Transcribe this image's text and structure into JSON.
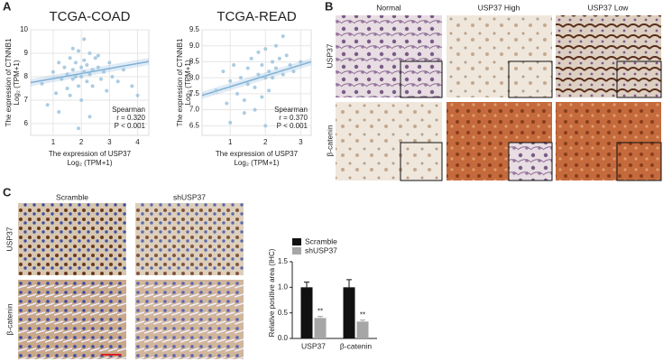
{
  "figure": {
    "panel_labels": [
      "A",
      "B",
      "C"
    ],
    "panel_b": {
      "columns": [
        "Normal",
        "USP37 High",
        "USP37 Low"
      ],
      "rows": [
        "USP37",
        "β-catenin"
      ]
    },
    "panel_c": {
      "columns": [
        "Scramble",
        "shUSP37"
      ],
      "rows": [
        "USP37",
        "β-catenin"
      ]
    }
  },
  "chart_data": [
    {
      "type": "scatter",
      "title": "TCGA-COAD",
      "color": "#9cc3de",
      "ylabel": [
        "The expression of CTNNB1",
        "Log₂ (TPM+1)"
      ],
      "xlabel": [
        "The expression of USP37",
        "Log₂ (TPM+1)"
      ],
      "x": [
        0.6,
        0.8,
        1.0,
        1.1,
        1.2,
        1.3,
        1.4,
        1.5,
        1.5,
        1.6,
        1.6,
        1.7,
        1.7,
        1.8,
        1.8,
        1.9,
        1.9,
        2.0,
        2.0,
        2.0,
        2.1,
        2.1,
        2.2,
        2.2,
        2.3,
        2.3,
        2.4,
        2.4,
        2.5,
        2.6,
        2.7,
        2.8,
        2.9,
        3.0,
        3.1,
        3.3,
        3.5,
        3.8,
        4.0,
        1.2,
        1.9,
        2.3,
        2.1,
        1.7,
        2.6
      ],
      "values": [
        7.7,
        6.8,
        8.2,
        7.3,
        8.6,
        7.9,
        8.4,
        8.1,
        7.5,
        8.8,
        7.2,
        8.3,
        7.9,
        8.6,
        8.0,
        9.1,
        7.6,
        8.4,
        8.0,
        7.0,
        8.7,
        8.2,
        8.5,
        7.8,
        9.0,
        8.1,
        8.3,
        7.6,
        8.8,
        8.4,
        7.9,
        8.2,
        7.4,
        8.6,
        8.0,
        7.8,
        8.3,
        7.6,
        7.2,
        6.5,
        5.8,
        6.3,
        9.6,
        9.2,
        8.9
      ],
      "trendline": {
        "x": [
          0.2,
          4.4
        ],
        "y": [
          7.75,
          8.65
        ],
        "color": "#7fb0d6"
      },
      "annotations": [
        "Spearman",
        "r = 0.320",
        "P < 0.001"
      ],
      "xlim": [
        0.2,
        4.4
      ],
      "xticks": [
        1,
        2,
        3,
        4
      ],
      "ylim": [
        5.5,
        10
      ],
      "yticks": [
        6,
        7,
        8,
        9,
        10
      ],
      "grid": true
    },
    {
      "type": "scatter",
      "title": "TCGA-READ",
      "color": "#9cc3de",
      "ylabel": [
        "The expression of CTNNB1",
        "Log₂ (TPM+1)"
      ],
      "xlabel": [
        "The expression of USP37",
        "Log₂ (TPM+1)"
      ],
      "x": [
        0.6,
        0.8,
        0.9,
        1.0,
        1.1,
        1.2,
        1.3,
        1.4,
        1.5,
        1.5,
        1.6,
        1.7,
        1.8,
        1.8,
        1.9,
        1.9,
        2.0,
        2.0,
        2.1,
        2.1,
        2.2,
        2.2,
        2.3,
        2.3,
        2.4,
        2.5,
        2.6,
        2.7,
        2.8,
        3.0,
        1.0,
        1.4,
        2.0,
        2.5,
        1.7
      ],
      "values": [
        7.6,
        8.2,
        7.2,
        7.9,
        8.4,
        7.5,
        8.0,
        7.3,
        8.3,
        7.8,
        8.6,
        7.7,
        8.1,
        8.8,
        7.4,
        8.4,
        8.0,
        8.9,
        8.2,
        7.6,
        8.5,
        8.0,
        9.0,
        8.3,
        8.6,
        8.1,
        8.7,
        8.4,
        8.2,
        8.5,
        6.6,
        6.9,
        6.5,
        9.3,
        7.0
      ],
      "trendline": {
        "x": [
          0.2,
          3.3
        ],
        "y": [
          7.45,
          8.5
        ],
        "color": "#7fb0d6"
      },
      "annotations": [
        "Spearman",
        "r = 0.370",
        "P < 0.001"
      ],
      "xlim": [
        0.2,
        3.3
      ],
      "xticks": [
        1,
        2,
        3
      ],
      "ylim": [
        6.2,
        9.5
      ],
      "yticks": [
        6.5,
        {
          "value": 7,
          "label": "7.0"
        },
        7.5,
        {
          "value": 8,
          "label": "8.0"
        },
        8.5,
        {
          "value": 9,
          "label": "9.0"
        },
        9.5
      ],
      "grid": true
    },
    {
      "type": "bar",
      "ylabel": "Relative positive area (IHC)",
      "categories": [
        "USP37",
        "β-catenin"
      ],
      "series": [
        {
          "name": "Scramble",
          "color": "#111111",
          "values": [
            1.0,
            1.0
          ],
          "errors": [
            0.1,
            0.15
          ]
        },
        {
          "name": "shUSP37",
          "color": "#a6a6a6",
          "values": [
            0.4,
            0.33
          ],
          "errors": [
            0.03,
            0.03
          ],
          "annotations": [
            "**",
            "**"
          ]
        }
      ],
      "ylim": [
        0,
        1.5
      ],
      "yticks": [
        {
          "value": 0,
          "label": "0.0"
        },
        0.5,
        {
          "value": 1,
          "label": "1.0"
        },
        1.5
      ],
      "legend": "upper-left"
    }
  ]
}
